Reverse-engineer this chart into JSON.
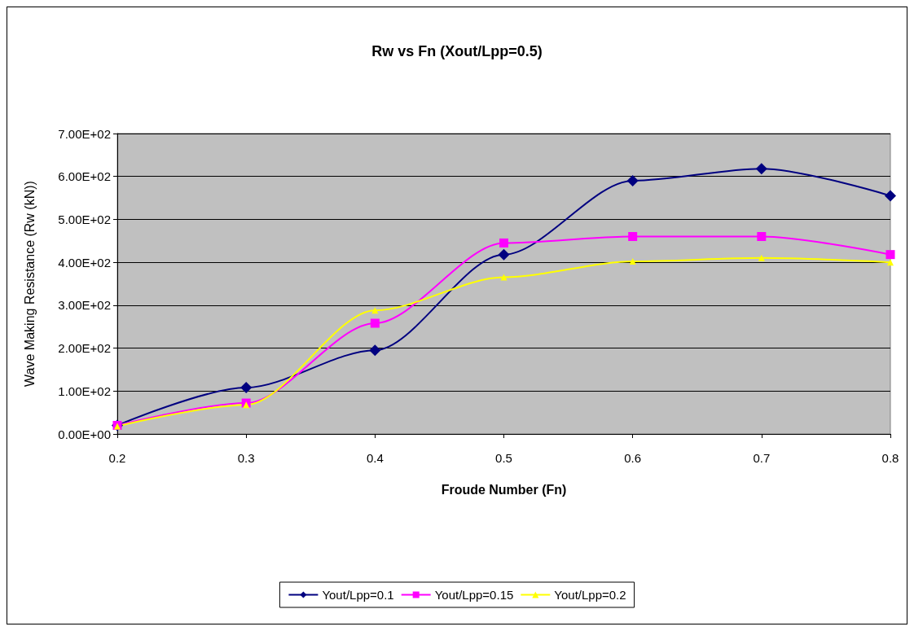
{
  "chart_data": {
    "type": "line",
    "title": "Rw vs Fn (Xout/Lpp=0.5)",
    "xlabel": "Froude Number (Fn)",
    "ylabel": "Wave Making Resistance (Rw (kN))",
    "x": [
      0.2,
      0.3,
      0.4,
      0.5,
      0.6,
      0.7,
      0.8
    ],
    "series": [
      {
        "name": "Yout/Lpp=0.1",
        "color": "#000080",
        "marker": "diamond",
        "values": [
          20,
          108,
          195,
          418,
          590,
          618,
          555
        ]
      },
      {
        "name": "Yout/Lpp=0.15",
        "color": "#ff00ff",
        "marker": "square",
        "values": [
          20,
          72,
          258,
          445,
          460,
          460,
          418
        ]
      },
      {
        "name": "Yout/Lpp=0.2",
        "color": "#ffff00",
        "marker": "triangle",
        "values": [
          18,
          68,
          288,
          365,
          402,
          410,
          400
        ]
      }
    ],
    "xlim": [
      0.2,
      0.8
    ],
    "xticks": [
      0.2,
      0.3,
      0.4,
      0.5,
      0.6,
      0.7,
      0.8
    ],
    "ylim": [
      0,
      700
    ],
    "yticks": [
      {
        "value": 0,
        "label": "0.00E+00"
      },
      {
        "value": 100,
        "label": "1.00E+02"
      },
      {
        "value": 200,
        "label": "2.00E+02"
      },
      {
        "value": 300,
        "label": "3.00E+02"
      },
      {
        "value": 400,
        "label": "4.00E+02"
      },
      {
        "value": 500,
        "label": "5.00E+02"
      },
      {
        "value": 600,
        "label": "6.00E+02"
      },
      {
        "value": 700,
        "label": "7.00E+02"
      }
    ],
    "grid": "y",
    "legend": "bottom",
    "line_style": "solid"
  }
}
